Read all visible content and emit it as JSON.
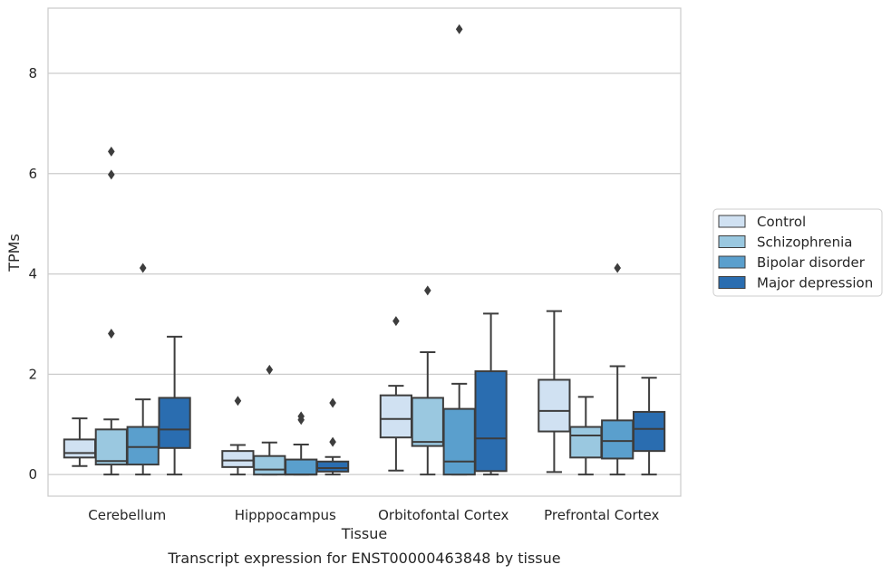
{
  "chart_data": {
    "type": "box",
    "title": "",
    "caption": "Transcript expression for ENST00000463848 by tissue",
    "xlabel": "Tissue",
    "ylabel": "TPMs",
    "categories": [
      "Cerebellum",
      "Hipppocampus",
      "Orbitofontal Cortex",
      "Prefrontal Cortex"
    ],
    "ylim": [
      -0.43,
      9.3
    ],
    "yticks": [
      0,
      2,
      4,
      6,
      8
    ],
    "grid": "horizontal",
    "legend_position": "right",
    "series": [
      {
        "name": "Control",
        "color": "#d0e1f2",
        "boxes": [
          {
            "min": 0.17,
            "q1": 0.34,
            "median": 0.43,
            "q3": 0.7,
            "max": 1.12,
            "outliers": []
          },
          {
            "min": 0.0,
            "q1": 0.15,
            "median": 0.28,
            "q3": 0.47,
            "max": 0.59,
            "outliers": [
              1.47
            ]
          },
          {
            "min": 0.08,
            "q1": 0.74,
            "median": 1.11,
            "q3": 1.58,
            "max": 1.77,
            "outliers": [
              3.06
            ]
          },
          {
            "min": 0.05,
            "q1": 0.86,
            "median": 1.27,
            "q3": 1.89,
            "max": 3.26,
            "outliers": []
          }
        ]
      },
      {
        "name": "Schizophrenia",
        "color": "#9ac8e0",
        "boxes": [
          {
            "min": 0.0,
            "q1": 0.2,
            "median": 0.27,
            "q3": 0.9,
            "max": 1.1,
            "outliers": [
              2.81,
              5.98,
              6.44
            ]
          },
          {
            "min": 0.0,
            "q1": 0.0,
            "median": 0.1,
            "q3": 0.37,
            "max": 0.64,
            "outliers": [
              2.09
            ]
          },
          {
            "min": 0.0,
            "q1": 0.57,
            "median": 0.65,
            "q3": 1.53,
            "max": 2.44,
            "outliers": [
              3.67
            ]
          },
          {
            "min": 0.0,
            "q1": 0.34,
            "median": 0.78,
            "q3": 0.95,
            "max": 1.55,
            "outliers": []
          }
        ]
      },
      {
        "name": "Bipolar disorder",
        "color": "#5a9fcd",
        "boxes": [
          {
            "min": 0.0,
            "q1": 0.2,
            "median": 0.55,
            "q3": 0.95,
            "max": 1.5,
            "outliers": [
              4.12
            ]
          },
          {
            "min": 0.0,
            "q1": 0.0,
            "median": 0.0,
            "q3": 0.3,
            "max": 0.6,
            "outliers": [
              1.09,
              1.16
            ]
          },
          {
            "min": 0.0,
            "q1": 0.0,
            "median": 0.26,
            "q3": 1.31,
            "max": 1.81,
            "outliers": [
              8.88
            ]
          },
          {
            "min": 0.0,
            "q1": 0.32,
            "median": 0.67,
            "q3": 1.08,
            "max": 2.16,
            "outliers": [
              4.12
            ]
          }
        ]
      },
      {
        "name": "Major depression",
        "color": "#2a6db0",
        "boxes": [
          {
            "min": 0.0,
            "q1": 0.53,
            "median": 0.9,
            "q3": 1.53,
            "max": 2.75,
            "outliers": []
          },
          {
            "min": 0.0,
            "q1": 0.06,
            "median": 0.13,
            "q3": 0.26,
            "max": 0.35,
            "outliers": [
              0.65,
              1.43
            ]
          },
          {
            "min": 0.0,
            "q1": 0.07,
            "median": 0.72,
            "q3": 2.06,
            "max": 3.21,
            "outliers": []
          },
          {
            "min": 0.0,
            "q1": 0.47,
            "median": 0.91,
            "q3": 1.25,
            "max": 1.93,
            "outliers": []
          }
        ]
      }
    ]
  }
}
